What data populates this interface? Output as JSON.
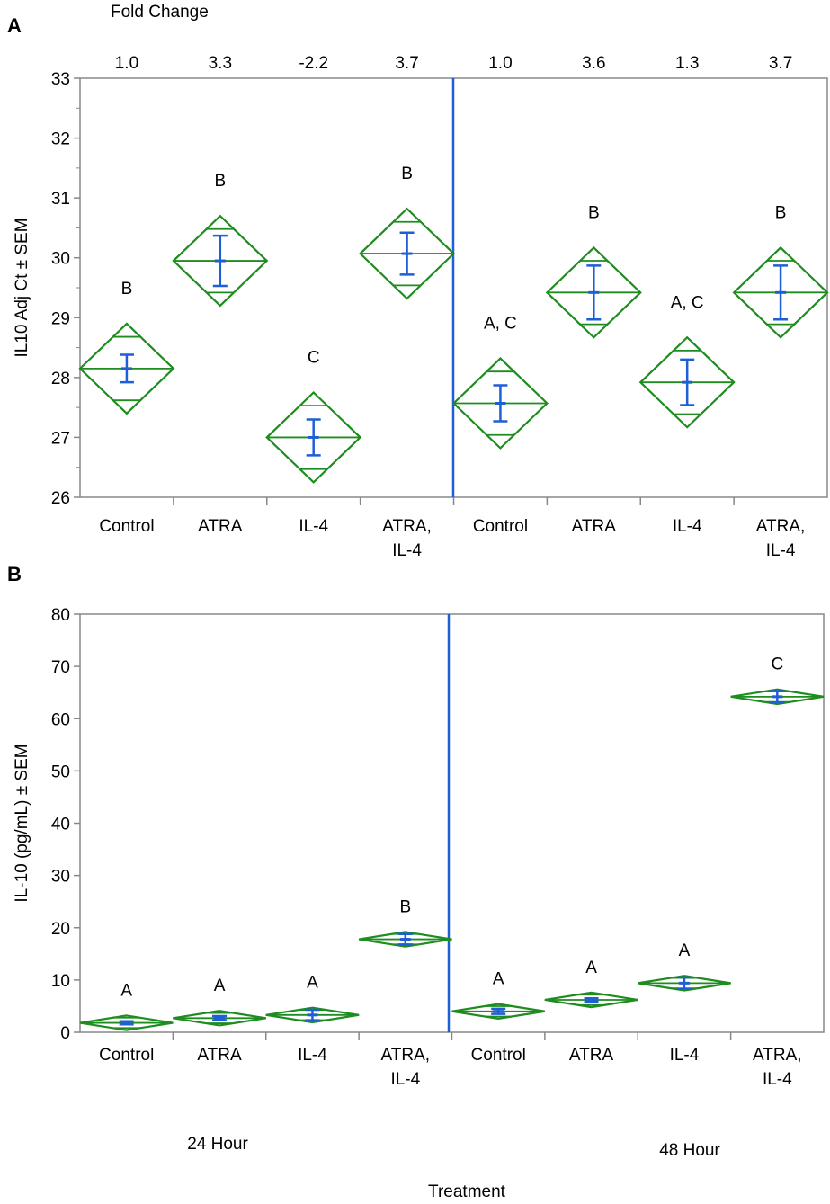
{
  "x_title": "Treatment",
  "group_labels": [
    "24 Hour",
    "48 Hour"
  ],
  "colors": {
    "diamond": "#1e8c1e",
    "errorbar": "#1f5fd6",
    "divider": "#1f5fd6",
    "frame": "#888888"
  },
  "chart_data": [
    {
      "panel": "A",
      "type": "diamond",
      "ylabel": "IL10 Adj Ct ± SEM",
      "ylim": [
        26,
        33
      ],
      "yticks": [
        26,
        27,
        28,
        29,
        30,
        31,
        32,
        33
      ],
      "fold_change_title": "Fold Change",
      "fold_change": [
        "1.0",
        "3.3",
        "-2.2",
        "3.7",
        "1.0",
        "3.6",
        "1.3",
        "3.7"
      ],
      "categories": [
        [
          "Control"
        ],
        [
          "ATRA"
        ],
        [
          "IL-4"
        ],
        [
          "ATRA,",
          "IL-4"
        ],
        [
          "Control"
        ],
        [
          "ATRA"
        ],
        [
          "IL-4"
        ],
        [
          "ATRA,",
          "IL-4"
        ]
      ],
      "means": [
        28.15,
        29.95,
        27.0,
        30.07,
        27.57,
        29.42,
        27.92,
        29.42
      ],
      "ci_half": [
        0.75,
        0.75,
        0.75,
        0.75,
        0.75,
        0.75,
        0.75,
        0.75
      ],
      "sem": [
        0.23,
        0.42,
        0.3,
        0.35,
        0.3,
        0.45,
        0.38,
        0.45
      ],
      "significance": [
        "B",
        "B",
        "C",
        "B",
        "A, C",
        "B",
        "A, C",
        "B"
      ]
    },
    {
      "panel": "B",
      "type": "diamond",
      "ylabel": "IL-10 (pg/mL) ± SEM",
      "ylim": [
        0,
        80
      ],
      "yticks": [
        0,
        10,
        20,
        30,
        40,
        50,
        60,
        70,
        80
      ],
      "categories": [
        [
          "Control"
        ],
        [
          "ATRA"
        ],
        [
          "IL-4"
        ],
        [
          "ATRA,",
          "IL-4"
        ],
        [
          "Control"
        ],
        [
          "ATRA"
        ],
        [
          "IL-4"
        ],
        [
          "ATRA,",
          "IL-4"
        ]
      ],
      "means": [
        1.8,
        2.7,
        3.3,
        17.8,
        4.0,
        6.2,
        9.4,
        64.2
      ],
      "ci_half": [
        1.4,
        1.4,
        1.4,
        1.4,
        1.4,
        1.4,
        1.4,
        1.4
      ],
      "sem": [
        0.3,
        0.4,
        1.0,
        1.0,
        0.5,
        0.3,
        1.1,
        1.1
      ],
      "significance": [
        "A",
        "A",
        "A",
        "B",
        "A",
        "A",
        "A",
        "C"
      ]
    }
  ]
}
